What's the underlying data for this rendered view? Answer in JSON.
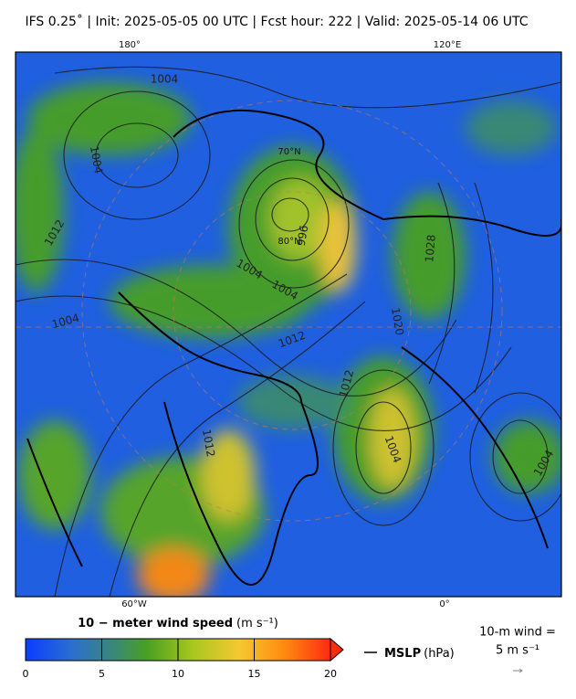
{
  "header": {
    "title": "IFS 0.25˚  |  Init: 2025-05-05 00 UTC  |  Fcst hour: 222  |  Valid: 2025-05-14 06 UTC"
  },
  "map": {
    "top_labels": [
      "180°",
      "120°E"
    ],
    "bottom_labels": [
      "60°W",
      "0°"
    ],
    "lat_labels": [
      "70°N",
      "80°N"
    ],
    "contour_labels": [
      "1004",
      "1004",
      "1012",
      "996",
      "1004",
      "1004",
      "1028",
      "1020",
      "1004",
      "1012",
      "1012",
      "1012",
      "1004",
      "1004"
    ]
  },
  "colorbar": {
    "label": "10 − meter wind speed",
    "unit": "(m s⁻¹)",
    "range": [
      0,
      20
    ],
    "ticks": [
      0,
      5,
      10,
      15,
      20
    ]
  },
  "legend": {
    "mslp": "MSLP",
    "mslp_unit": "(hPa)",
    "wind_ref": "10-m wind =",
    "wind_ref_value": "5 m s⁻¹"
  }
}
